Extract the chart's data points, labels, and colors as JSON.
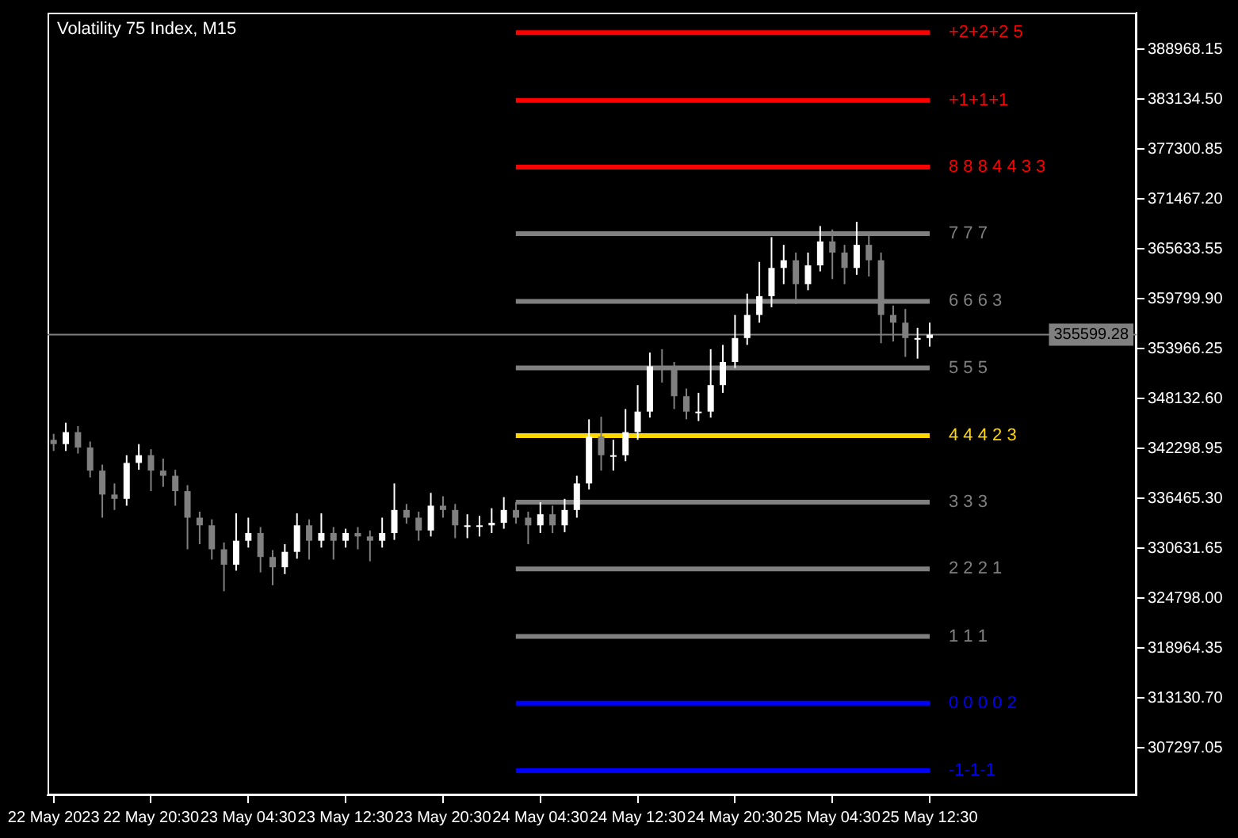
{
  "chart_data": {
    "type": "candlestick",
    "title": "Volatility 75 Index, M15",
    "x": [
      "2023-05-22T12:30",
      "2023-05-22T13:30",
      "2023-05-22T14:30",
      "2023-05-22T15:30",
      "2023-05-22T16:30",
      "2023-05-22T17:30",
      "2023-05-22T18:30",
      "2023-05-22T19:30",
      "2023-05-22T20:30",
      "2023-05-22T21:30",
      "2023-05-22T22:30",
      "2023-05-22T23:30",
      "2023-05-23T00:30",
      "2023-05-23T01:30",
      "2023-05-23T02:30",
      "2023-05-23T03:30",
      "2023-05-23T04:30",
      "2023-05-23T05:30",
      "2023-05-23T06:30",
      "2023-05-23T07:30",
      "2023-05-23T08:30",
      "2023-05-23T09:30",
      "2023-05-23T10:30",
      "2023-05-23T11:30",
      "2023-05-23T12:30",
      "2023-05-23T13:30",
      "2023-05-23T14:30",
      "2023-05-23T15:30",
      "2023-05-23T16:30",
      "2023-05-23T17:30",
      "2023-05-23T18:30",
      "2023-05-23T19:30",
      "2023-05-23T20:30",
      "2023-05-23T21:30",
      "2023-05-23T22:30",
      "2023-05-23T23:30",
      "2023-05-24T00:30",
      "2023-05-24T01:30",
      "2023-05-24T02:30",
      "2023-05-24T03:30",
      "2023-05-24T04:30",
      "2023-05-24T05:30",
      "2023-05-24T06:30",
      "2023-05-24T07:30",
      "2023-05-24T08:30",
      "2023-05-24T09:30",
      "2023-05-24T10:30",
      "2023-05-24T11:30",
      "2023-05-24T12:30",
      "2023-05-24T13:30",
      "2023-05-24T14:30",
      "2023-05-24T15:30",
      "2023-05-24T16:30",
      "2023-05-24T17:30",
      "2023-05-24T18:30",
      "2023-05-24T19:30",
      "2023-05-24T20:30",
      "2023-05-24T21:30",
      "2023-05-24T22:30",
      "2023-05-24T23:30",
      "2023-05-25T00:30",
      "2023-05-25T01:30",
      "2023-05-25T02:30",
      "2023-05-25T03:30",
      "2023-05-25T04:30",
      "2023-05-25T05:30",
      "2023-05-25T06:30",
      "2023-05-25T07:30",
      "2023-05-25T08:30",
      "2023-05-25T09:30",
      "2023-05-25T10:30",
      "2023-05-25T11:30",
      "2023-05-25T12:30"
    ],
    "ohlc": [
      [
        343300,
        344000,
        342000,
        342800
      ],
      [
        342800,
        345300,
        342000,
        344200
      ],
      [
        344200,
        344900,
        341700,
        342400
      ],
      [
        342400,
        343100,
        338900,
        339700
      ],
      [
        339700,
        340400,
        334200,
        336900
      ],
      [
        336900,
        338200,
        335100,
        336400
      ],
      [
        336400,
        341500,
        335600,
        340600
      ],
      [
        340600,
        342800,
        339800,
        341500
      ],
      [
        341500,
        342200,
        337300,
        339700
      ],
      [
        339700,
        341100,
        337800,
        339100
      ],
      [
        339100,
        339800,
        335600,
        337300
      ],
      [
        337300,
        338000,
        330500,
        334200
      ],
      [
        334200,
        334900,
        331100,
        333300
      ],
      [
        333300,
        334000,
        329300,
        330500
      ],
      [
        330500,
        331300,
        325600,
        328700
      ],
      [
        328700,
        334700,
        328000,
        331500
      ],
      [
        331500,
        334200,
        330700,
        332400
      ],
      [
        332400,
        333100,
        327800,
        329600
      ],
      [
        329600,
        330400,
        326300,
        328400
      ],
      [
        328400,
        331100,
        327600,
        330200
      ],
      [
        330200,
        334700,
        329400,
        333300
      ],
      [
        333300,
        334000,
        329300,
        331500
      ],
      [
        331500,
        334700,
        330700,
        332400
      ],
      [
        332400,
        333100,
        329300,
        331500
      ],
      [
        331500,
        332900,
        330700,
        332400
      ],
      [
        332400,
        333100,
        330500,
        332000
      ],
      [
        332000,
        332700,
        329100,
        331500
      ],
      [
        331500,
        334200,
        330700,
        332400
      ],
      [
        332400,
        338200,
        331600,
        335100
      ],
      [
        335100,
        335800,
        333500,
        334200
      ],
      [
        334200,
        334900,
        331500,
        332700
      ],
      [
        332700,
        337100,
        332000,
        335600
      ],
      [
        335600,
        336700,
        334200,
        335100
      ],
      [
        335100,
        335800,
        331800,
        333300
      ],
      [
        333300,
        334600,
        331800,
        333300
      ],
      [
        333300,
        334400,
        332000,
        333300
      ],
      [
        333300,
        335300,
        332400,
        333600
      ],
      [
        333600,
        336600,
        332900,
        335100
      ],
      [
        335100,
        336000,
        333500,
        334200
      ],
      [
        334200,
        334900,
        331100,
        333300
      ],
      [
        333300,
        336000,
        332400,
        334600
      ],
      [
        334600,
        335600,
        332400,
        333300
      ],
      [
        333300,
        336400,
        332500,
        335100
      ],
      [
        335100,
        339100,
        334200,
        338200
      ],
      [
        338200,
        345700,
        337500,
        343700
      ],
      [
        343700,
        346000,
        339700,
        341500
      ],
      [
        341500,
        343300,
        339700,
        341500
      ],
      [
        341500,
        346900,
        340800,
        344200
      ],
      [
        344200,
        349700,
        343300,
        346600
      ],
      [
        346600,
        353500,
        345900,
        351900
      ],
      [
        351900,
        353900,
        350000,
        351500
      ],
      [
        351500,
        352400,
        346900,
        348400
      ],
      [
        348400,
        349300,
        345700,
        346600
      ],
      [
        346600,
        348800,
        345500,
        346600
      ],
      [
        346600,
        353900,
        345900,
        349700
      ],
      [
        349700,
        354400,
        348800,
        352400
      ],
      [
        352400,
        357900,
        351700,
        355200
      ],
      [
        355200,
        360400,
        354400,
        357900
      ],
      [
        357900,
        364100,
        357000,
        360100
      ],
      [
        360100,
        367000,
        358800,
        363400
      ],
      [
        363400,
        366100,
        361500,
        364300
      ],
      [
        364300,
        365200,
        359200,
        361500
      ],
      [
        361500,
        365200,
        360800,
        363700
      ],
      [
        363700,
        368300,
        363000,
        366500
      ],
      [
        366500,
        367900,
        362100,
        365200
      ],
      [
        365200,
        366100,
        361500,
        363400
      ],
      [
        363400,
        368800,
        362600,
        366100
      ],
      [
        366100,
        367400,
        362400,
        364300
      ],
      [
        364300,
        365200,
        354600,
        357900
      ],
      [
        357900,
        359000,
        354800,
        357000
      ],
      [
        357000,
        358600,
        353000,
        355200
      ],
      [
        355200,
        356400,
        352800,
        355200
      ],
      [
        355200,
        357000,
        354200,
        355600
      ]
    ],
    "colors": [
      "#808080",
      "#ffffff",
      "#808080",
      "#808080",
      "#808080",
      "#808080",
      "#ffffff",
      "#ffffff",
      "#808080",
      "#808080",
      "#808080",
      "#808080",
      "#808080",
      "#808080",
      "#808080",
      "#ffffff",
      "#ffffff",
      "#808080",
      "#808080",
      "#ffffff",
      "#ffffff",
      "#808080",
      "#ffffff",
      "#808080",
      "#ffffff",
      "#808080",
      "#808080",
      "#ffffff",
      "#ffffff",
      "#808080",
      "#808080",
      "#ffffff",
      "#808080",
      "#808080",
      "#ffffff",
      "#ffffff",
      "#ffffff",
      "#ffffff",
      "#808080",
      "#808080",
      "#ffffff",
      "#808080",
      "#ffffff",
      "#ffffff",
      "#ffffff",
      "#808080",
      "#ffffff",
      "#ffffff",
      "#ffffff",
      "#ffffff",
      "#808080",
      "#808080",
      "#808080",
      "#ffffff",
      "#ffffff",
      "#ffffff",
      "#ffffff",
      "#ffffff",
      "#ffffff",
      "#ffffff",
      "#ffffff",
      "#808080",
      "#ffffff",
      "#ffffff",
      "#808080",
      "#808080",
      "#ffffff",
      "#808080",
      "#808080",
      "#808080",
      "#808080",
      "#ffffff",
      "#ffffff"
    ],
    "xlim": [
      "2023-05-22T12:00",
      "2023-05-26T05:30"
    ],
    "xticks": [
      {
        "value": "2023-05-22T12:30",
        "label": "22 May 2023"
      },
      {
        "value": "2023-05-22T20:30",
        "label": "22 May 20:30"
      },
      {
        "value": "2023-05-23T04:30",
        "label": "23 May 04:30"
      },
      {
        "value": "2023-05-23T12:30",
        "label": "23 May 12:30"
      },
      {
        "value": "2023-05-23T20:30",
        "label": "23 May 20:30"
      },
      {
        "value": "2023-05-24T04:30",
        "label": "24 May 04:30"
      },
      {
        "value": "2023-05-24T12:30",
        "label": "24 May 12:30"
      },
      {
        "value": "2023-05-24T20:30",
        "label": "24 May 20:30"
      },
      {
        "value": "2023-05-25T04:30",
        "label": "25 May 04:30"
      },
      {
        "value": "2023-05-25T12:30",
        "label": "25 May 12:30"
      }
    ],
    "ylim": [
      301740,
      393250
    ],
    "yticks": [
      388968.15,
      {
        "value": 383134.5,
        "label": "383134.50"
      },
      377300.85,
      {
        "value": 371467.2,
        "label": "371467.20"
      },
      365633.55,
      {
        "value": 359799.9,
        "label": "359799.90"
      },
      353966.25,
      {
        "value": 348132.6,
        "label": "348132.60"
      },
      342298.95,
      {
        "value": 336465.3,
        "label": "336465.30"
      },
      330631.65,
      {
        "value": 324798,
        "label": "324798.00"
      },
      318964.35,
      {
        "value": 313130.7,
        "label": "313130.70"
      },
      307297.05
    ],
    "ref_lines": [
      {
        "axis": "y",
        "value": 390900,
        "color": "#ff0000"
      },
      {
        "axis": "y",
        "value": 383000,
        "color": "#ff0000"
      },
      {
        "axis": "y",
        "value": 375200,
        "color": "#ff0000"
      },
      {
        "axis": "y",
        "value": 367400,
        "color": "#808080"
      },
      {
        "axis": "y",
        "value": 359500,
        "color": "#808080"
      },
      {
        "axis": "y",
        "value": 351700,
        "color": "#808080"
      },
      {
        "axis": "y",
        "value": 343800,
        "color": "#ffd700"
      },
      {
        "axis": "y",
        "value": 336000,
        "color": "#808080"
      },
      {
        "axis": "y",
        "value": 328200,
        "color": "#808080"
      },
      {
        "axis": "y",
        "value": 320300,
        "color": "#808080"
      },
      {
        "axis": "y",
        "value": 312500,
        "color": "#0000ff"
      },
      {
        "axis": "y",
        "value": 304600,
        "color": "#0000ff"
      },
      {
        "axis": "y",
        "value": 355599.28,
        "label": "355599.28",
        "color": "#808080"
      }
    ],
    "annotations": [
      {
        "text": "+2+2+2 5",
        "x": "2023-05-25T12:30",
        "y": 390900
      },
      {
        "text": "+1+1+1",
        "x": "2023-05-25T12:30",
        "y": 383000
      },
      {
        "text": "8 8 8 4 4 3 3",
        "x": "2023-05-25T12:30",
        "y": 375200
      },
      {
        "text": "7 7 7",
        "x": "2023-05-25T12:30",
        "y": 367400
      },
      {
        "text": "6 6 6 3",
        "x": "2023-05-25T12:30",
        "y": 359500
      },
      {
        "text": "5 5 5",
        "x": "2023-05-25T12:30",
        "y": 351700
      },
      {
        "text": "4 4 4 2 3",
        "x": "2023-05-25T12:30",
        "y": 343800
      },
      {
        "text": "3 3 3",
        "x": "2023-05-25T12:30",
        "y": 336000
      },
      {
        "text": "2 2 2 1",
        "x": "2023-05-25T12:30",
        "y": 328200
      },
      {
        "text": "1 1 1",
        "x": "2023-05-25T12:30",
        "y": 320300
      },
      {
        "text": "0 0 0 0 2",
        "x": "2023-05-25T12:30",
        "y": 312500
      },
      {
        "text": "-1-1-1",
        "x": "2023-05-25T12:30",
        "y": 304600
      }
    ]
  }
}
